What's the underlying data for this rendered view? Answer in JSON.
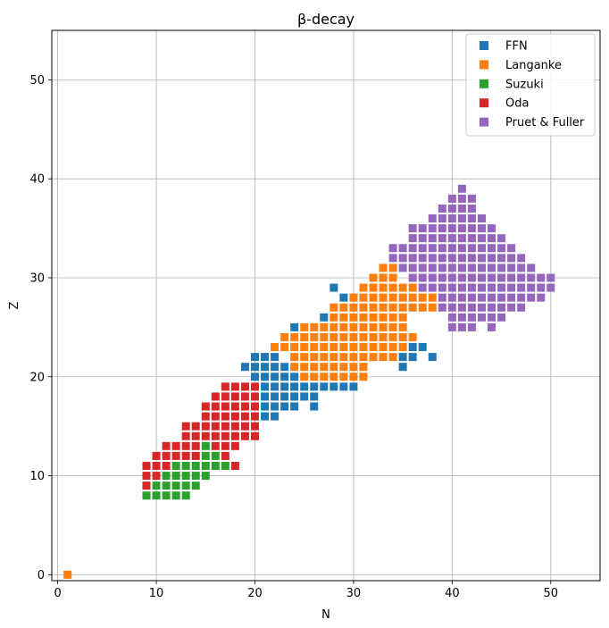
{
  "chart_data": {
    "type": "scatter",
    "title": "β-decay",
    "xlabel": "N",
    "ylabel": "Z",
    "xlim": [
      -0.6,
      55
    ],
    "ylim": [
      -0.6,
      55
    ],
    "xticks": [
      0,
      10,
      20,
      30,
      40,
      50
    ],
    "yticks": [
      0,
      10,
      20,
      30,
      40,
      50
    ],
    "grid": true,
    "legend_position": "top-right",
    "marker": "square",
    "series": [
      {
        "name": "FFN",
        "color": "#1f77b4",
        "rows": [
          {
            "z": 16,
            "n": [
              21,
              22
            ]
          },
          {
            "z": 17,
            "n": [
              21,
              22,
              23,
              24,
              26
            ]
          },
          {
            "z": 18,
            "n": [
              21,
              22,
              23,
              24,
              25,
              26
            ]
          },
          {
            "z": 19,
            "n": [
              21,
              22,
              23,
              24,
              25,
              26,
              27,
              28,
              29,
              30
            ]
          },
          {
            "z": 20,
            "n": [
              20,
              21,
              22,
              23,
              24
            ]
          },
          {
            "z": 21,
            "n": [
              19,
              20,
              21,
              22,
              23,
              35
            ]
          },
          {
            "z": 22,
            "n": [
              20,
              21,
              22,
              35,
              36,
              38
            ]
          },
          {
            "z": 23,
            "n": [
              36,
              37
            ]
          },
          {
            "z": 25,
            "n": [
              24
            ]
          },
          {
            "z": 26,
            "n": [
              27
            ]
          },
          {
            "z": 28,
            "n": [
              29
            ]
          },
          {
            "z": 29,
            "n": [
              28
            ]
          }
        ]
      },
      {
        "name": "Langanke",
        "color": "#ff7f0e",
        "rows": [
          {
            "z": 0,
            "n": [
              1
            ]
          },
          {
            "z": 20,
            "n": [
              25,
              26,
              27,
              28,
              29,
              30,
              31
            ]
          },
          {
            "z": 21,
            "n": [
              24,
              25,
              26,
              27,
              28,
              29,
              30,
              31
            ]
          },
          {
            "z": 22,
            "n": [
              24,
              25,
              26,
              27,
              28,
              29,
              30,
              31,
              32,
              33,
              34
            ]
          },
          {
            "z": 23,
            "n": [
              22,
              23,
              24,
              25,
              26,
              27,
              28,
              29,
              30,
              31,
              32,
              33,
              34,
              35
            ]
          },
          {
            "z": 24,
            "n": [
              23,
              24,
              25,
              26,
              27,
              28,
              29,
              30,
              31,
              32,
              33,
              34,
              35,
              36
            ]
          },
          {
            "z": 25,
            "n": [
              25,
              26,
              27,
              28,
              29,
              30,
              31,
              32,
              33,
              34,
              35
            ]
          },
          {
            "z": 26,
            "n": [
              28,
              29,
              30,
              31,
              32,
              33,
              34,
              35
            ]
          },
          {
            "z": 27,
            "n": [
              28,
              29,
              30,
              31,
              32,
              33,
              34,
              35,
              36,
              37,
              38
            ]
          },
          {
            "z": 28,
            "n": [
              30,
              31,
              32,
              33,
              34,
              35,
              36,
              37,
              38
            ]
          },
          {
            "z": 29,
            "n": [
              31,
              32,
              33,
              34,
              35,
              36
            ]
          },
          {
            "z": 30,
            "n": [
              32,
              33,
              34
            ]
          },
          {
            "z": 31,
            "n": [
              33,
              34
            ]
          }
        ]
      },
      {
        "name": "Suzuki",
        "color": "#2ca02c",
        "rows": [
          {
            "z": 8,
            "n": [
              9,
              10,
              11,
              12,
              13
            ]
          },
          {
            "z": 9,
            "n": [
              10,
              11,
              12,
              13,
              14
            ]
          },
          {
            "z": 10,
            "n": [
              11,
              12,
              13,
              14,
              15
            ]
          },
          {
            "z": 11,
            "n": [
              12,
              13,
              14,
              15,
              16,
              17
            ]
          },
          {
            "z": 12,
            "n": [
              15,
              16
            ]
          },
          {
            "z": 13,
            "n": [
              15
            ]
          }
        ]
      },
      {
        "name": "Oda",
        "color": "#d62728",
        "rows": [
          {
            "z": 9,
            "n": [
              9
            ]
          },
          {
            "z": 10,
            "n": [
              9,
              10
            ]
          },
          {
            "z": 11,
            "n": [
              9,
              10,
              11,
              18
            ]
          },
          {
            "z": 12,
            "n": [
              10,
              11,
              12,
              13,
              14,
              17
            ]
          },
          {
            "z": 13,
            "n": [
              11,
              12,
              13,
              14,
              16,
              17,
              18
            ]
          },
          {
            "z": 14,
            "n": [
              13,
              14,
              15,
              16,
              17,
              18,
              19,
              20
            ]
          },
          {
            "z": 15,
            "n": [
              13,
              14,
              15,
              16,
              17,
              18,
              19,
              20
            ]
          },
          {
            "z": 16,
            "n": [
              15,
              16,
              17,
              18,
              19,
              20
            ]
          },
          {
            "z": 17,
            "n": [
              15,
              16,
              17,
              18,
              19,
              20
            ]
          },
          {
            "z": 18,
            "n": [
              16,
              17,
              18,
              19,
              20
            ]
          },
          {
            "z": 19,
            "n": [
              17,
              18,
              19,
              20
            ]
          }
        ]
      },
      {
        "name": "Pruet & Fuller",
        "color": "#9467bd",
        "rows": [
          {
            "z": 25,
            "n": [
              40,
              41,
              42,
              44
            ]
          },
          {
            "z": 26,
            "n": [
              40,
              41,
              42,
              43,
              44,
              45
            ]
          },
          {
            "z": 27,
            "n": [
              39,
              40,
              41,
              42,
              43,
              44,
              45,
              46,
              47
            ]
          },
          {
            "z": 28,
            "n": [
              39,
              40,
              41,
              42,
              43,
              44,
              45,
              46,
              47,
              48,
              49
            ]
          },
          {
            "z": 29,
            "n": [
              37,
              38,
              39,
              40,
              41,
              42,
              43,
              44,
              45,
              46,
              47,
              48,
              49,
              50
            ]
          },
          {
            "z": 30,
            "n": [
              36,
              37,
              38,
              39,
              40,
              41,
              42,
              43,
              44,
              45,
              46,
              47,
              48,
              49,
              50
            ]
          },
          {
            "z": 31,
            "n": [
              35,
              36,
              37,
              38,
              39,
              40,
              41,
              42,
              43,
              44,
              45,
              46,
              47,
              48
            ]
          },
          {
            "z": 32,
            "n": [
              34,
              35,
              36,
              37,
              38,
              39,
              40,
              41,
              42,
              43,
              44,
              45,
              46,
              47
            ]
          },
          {
            "z": 33,
            "n": [
              34,
              35,
              36,
              37,
              38,
              39,
              40,
              41,
              42,
              43,
              44,
              45,
              46
            ]
          },
          {
            "z": 34,
            "n": [
              36,
              37,
              38,
              39,
              40,
              41,
              42,
              43,
              44,
              45
            ]
          },
          {
            "z": 35,
            "n": [
              36,
              37,
              38,
              39,
              40,
              41,
              42,
              43,
              44
            ]
          },
          {
            "z": 36,
            "n": [
              38,
              39,
              40,
              41,
              42,
              43
            ]
          },
          {
            "z": 37,
            "n": [
              39,
              40,
              41,
              42
            ]
          },
          {
            "z": 38,
            "n": [
              40,
              41,
              42
            ]
          },
          {
            "z": 39,
            "n": [
              41
            ]
          }
        ]
      }
    ]
  }
}
